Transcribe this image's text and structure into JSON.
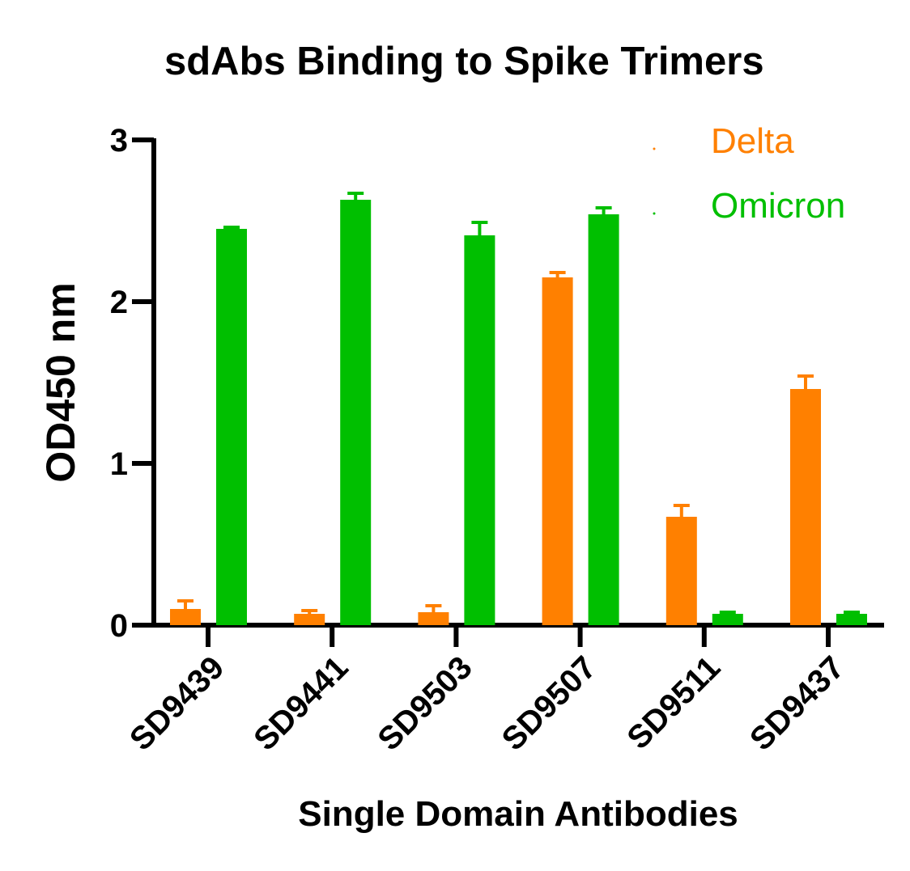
{
  "chart_data": {
    "type": "bar",
    "title": "sdAbs Binding to Spike Trimers",
    "xlabel": "Single Domain Antibodies",
    "ylabel": "OD450 nm",
    "ylim": [
      0,
      3
    ],
    "yticks": [
      0,
      1,
      2,
      3
    ],
    "grid": false,
    "legend_position": "top-right",
    "categories": [
      "SD9439",
      "SD9441",
      "SD9503",
      "SD9507",
      "SD9511",
      "SD9437"
    ],
    "series": [
      {
        "name": "Delta",
        "color": "#ff8000",
        "values": [
          0.1,
          0.07,
          0.08,
          2.15,
          0.67,
          1.46
        ],
        "errors": [
          0.05,
          0.02,
          0.04,
          0.03,
          0.07,
          0.08
        ]
      },
      {
        "name": "Omicron",
        "color": "#00bf00",
        "values": [
          2.45,
          2.63,
          2.41,
          2.54,
          0.07,
          0.07
        ],
        "errors": [
          0.01,
          0.04,
          0.08,
          0.04,
          0.01,
          0.01
        ]
      }
    ]
  },
  "legend": {
    "items": [
      {
        "label": "Delta",
        "color": "#ff8000"
      },
      {
        "label": "Omicron",
        "color": "#00bf00"
      }
    ]
  }
}
